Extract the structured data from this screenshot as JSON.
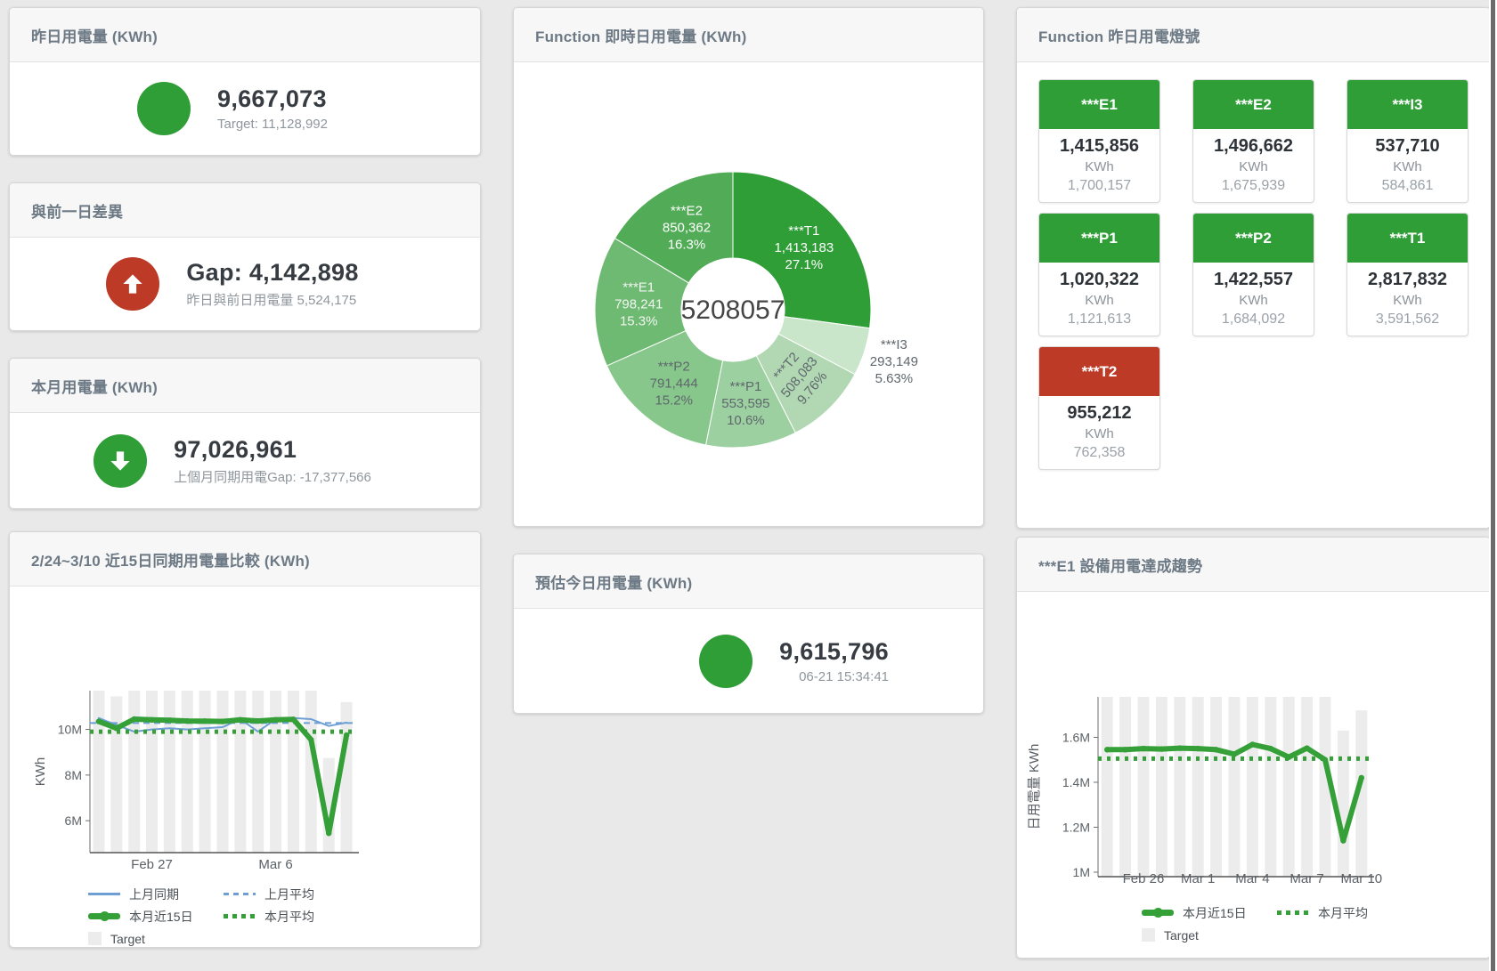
{
  "colors": {
    "status_green": "#2f9e37",
    "status_red": "#bd3a27",
    "green_line": "#34a037",
    "blue_line": "#6e9fd4",
    "bar_gray": "#ececec"
  },
  "cards": {
    "yesterday": {
      "title": "昨日用電量 (KWh)",
      "value": "9,667,073",
      "subtitle": "Target: 11,128,992",
      "icon": "green-circle",
      "icon_color_key": "status_green"
    },
    "gap": {
      "title": "與前一日差異",
      "value": "Gap: 4,142,898",
      "subtitle": "昨日與前日用電量 5,524,175",
      "icon": "arrow-up-circle",
      "icon_color_key": "status_red"
    },
    "month": {
      "title": "本月用電量 (KWh)",
      "value": "97,026,961",
      "subtitle": "上個月同期用電Gap: -17,377,566",
      "icon": "arrow-down-circle",
      "icon_color_key": "status_green"
    },
    "estimate": {
      "title": "預估今日用電量 (KWh)",
      "value": "9,615,796",
      "subtitle": "06-21 15:34:41",
      "icon": "green-circle",
      "icon_color_key": "status_green"
    },
    "lights": {
      "title": "Function 昨日用電燈號",
      "tiles": [
        {
          "name": "***E1",
          "value": "1,415,856",
          "unit": "KWh",
          "target": "1,700,157",
          "status": "status_green"
        },
        {
          "name": "***E2",
          "value": "1,496,662",
          "unit": "KWh",
          "target": "1,675,939",
          "status": "status_green"
        },
        {
          "name": "***I3",
          "value": "537,710",
          "unit": "KWh",
          "target": "584,861",
          "status": "status_green"
        },
        {
          "name": "***P1",
          "value": "1,020,322",
          "unit": "KWh",
          "target": "1,121,613",
          "status": "status_green"
        },
        {
          "name": "***P2",
          "value": "1,422,557",
          "unit": "KWh",
          "target": "1,684,092",
          "status": "status_green"
        },
        {
          "name": "***T1",
          "value": "2,817,832",
          "unit": "KWh",
          "target": "3,591,562",
          "status": "status_green"
        },
        {
          "name": "***T2",
          "value": "955,212",
          "unit": "KWh",
          "target": "762,358",
          "status": "status_red"
        }
      ]
    }
  },
  "chart_data": [
    {
      "id": "donut",
      "type": "pie",
      "title": "Function 即時日用電量 (KWh)",
      "center_total": "5208057",
      "slices": [
        {
          "name": "***T1",
          "value": 1413183,
          "label_value": "1,413,183",
          "pct": "27.1%",
          "color": "#2f9e37",
          "label_color": "#ffffff"
        },
        {
          "name": "***I3",
          "value": 293149,
          "label_value": "293,149",
          "pct": "5.63%",
          "color": "#c9e5ca",
          "label_color": "#5f676d",
          "outside": true
        },
        {
          "name": "***T2",
          "value": 508083,
          "label_value": "508,083",
          "pct": "9.76%",
          "color": "#b1d8b3",
          "label_color": "#5f676d",
          "rotate": -50
        },
        {
          "name": "***P1",
          "value": 553595,
          "label_value": "553,595",
          "pct": "10.6%",
          "color": "#9dd0a0",
          "label_color": "#5f676d"
        },
        {
          "name": "***P2",
          "value": 791444,
          "label_value": "791,444",
          "pct": "15.2%",
          "color": "#87c78b",
          "label_color": "#5f676d"
        },
        {
          "name": "***E1",
          "value": 798241,
          "label_value": "798,241",
          "pct": "15.3%",
          "color": "#6fba73",
          "label_color": "#f0f5f0"
        },
        {
          "name": "***E2",
          "value": 850362,
          "label_value": "850,362",
          "pct": "16.3%",
          "color": "#52ac57",
          "label_color": "#ffffff"
        }
      ]
    },
    {
      "id": "compare",
      "type": "line",
      "title": "2/24~3/10 近15日同期用電量比較 (KWh)",
      "ylabel": "KWh",
      "unit": "M KWh",
      "categories": [
        "2/24",
        "2/25",
        "2/26",
        "2/27",
        "2/28",
        "3/1",
        "3/2",
        "3/3",
        "3/4",
        "3/5",
        "3/6",
        "3/7",
        "3/8",
        "3/9",
        "3/10"
      ],
      "ylim": [
        4.6,
        11.7
      ],
      "y_ticks": [
        {
          "v": 6,
          "label": "6M"
        },
        {
          "v": 8,
          "label": "8M"
        },
        {
          "v": 10,
          "label": "10M"
        }
      ],
      "x_ticks": [
        {
          "i": 3,
          "label": "Feb 27"
        },
        {
          "i": 10,
          "label": "Mar 6"
        }
      ],
      "bars": {
        "name": "Target",
        "color": "#ececec",
        "values": [
          11.7,
          11.45,
          11.7,
          11.7,
          11.7,
          11.7,
          11.7,
          11.7,
          11.7,
          11.7,
          11.7,
          11.7,
          11.7,
          8.75,
          11.2
        ]
      },
      "series": [
        {
          "name": "上月同期",
          "color": "#6e9fd4",
          "style": "solid",
          "width": 2,
          "values": [
            10.5,
            10.2,
            9.9,
            10.0,
            10.05,
            10.0,
            10.05,
            10.1,
            10.45,
            9.9,
            10.45,
            10.5,
            10.45,
            10.15,
            10.3
          ]
        },
        {
          "name": "上月平均",
          "color": "#6e9fd4",
          "style": "dashed",
          "width": 2,
          "const": 10.28
        },
        {
          "name": "本月近15日",
          "color": "#34a037",
          "style": "solid",
          "width": 6,
          "dots": true,
          "values": [
            10.35,
            10.05,
            10.45,
            10.42,
            10.4,
            10.37,
            10.36,
            10.35,
            10.42,
            10.37,
            10.42,
            10.44,
            9.55,
            5.45,
            9.75
          ]
        },
        {
          "name": "本月平均",
          "color": "#34a037",
          "style": "dotted",
          "width": 5,
          "const": 9.9
        }
      ],
      "legend_rows": [
        [
          {
            "label": "上月同期",
            "marker": "solid",
            "color": "#6e9fd4"
          },
          {
            "label": "上月平均",
            "marker": "dashed",
            "color": "#6e9fd4"
          }
        ],
        [
          {
            "label": "本月近15日",
            "marker": "thick",
            "color": "#34a037"
          },
          {
            "label": "本月平均",
            "marker": "dotted",
            "color": "#34a037"
          }
        ],
        [
          {
            "label": "Target",
            "marker": "square",
            "color": "#ececec"
          }
        ]
      ]
    },
    {
      "id": "trend",
      "type": "line",
      "title": "***E1 設備用電達成趨勢",
      "ylabel": "日用電量 KWh",
      "unit": "M KWh",
      "categories": [
        "2/24",
        "2/25",
        "2/26",
        "2/27",
        "2/28",
        "3/1",
        "3/2",
        "3/3",
        "3/4",
        "3/5",
        "3/6",
        "3/7",
        "3/8",
        "3/9",
        "3/10"
      ],
      "ylim": [
        0.98,
        1.78
      ],
      "y_ticks": [
        {
          "v": 1,
          "label": "1M"
        },
        {
          "v": 1.2,
          "label": "1.2M"
        },
        {
          "v": 1.4,
          "label": "1.4M"
        },
        {
          "v": 1.6,
          "label": "1.6M"
        }
      ],
      "x_ticks": [
        {
          "i": 2,
          "label": "Feb 26"
        },
        {
          "i": 5,
          "label": "Mar 1"
        },
        {
          "i": 8,
          "label": "Mar 4"
        },
        {
          "i": 11,
          "label": "Mar 7"
        },
        {
          "i": 14,
          "label": "Mar 10"
        }
      ],
      "bars": {
        "name": "Target",
        "color": "#ececec",
        "values": [
          1.78,
          1.78,
          1.78,
          1.78,
          1.78,
          1.78,
          1.78,
          1.78,
          1.78,
          1.78,
          1.78,
          1.78,
          1.78,
          1.63,
          1.72
        ]
      },
      "series": [
        {
          "name": "本月近15日",
          "color": "#34a037",
          "style": "solid",
          "width": 6,
          "dots": true,
          "values": [
            1.545,
            1.545,
            1.55,
            1.548,
            1.552,
            1.55,
            1.545,
            1.525,
            1.568,
            1.55,
            1.512,
            1.552,
            1.5,
            1.14,
            1.42
          ]
        },
        {
          "name": "本月平均",
          "color": "#34a037",
          "style": "dotted",
          "width": 5,
          "const": 1.505
        }
      ],
      "legend_rows": [
        [
          {
            "label": "本月近15日",
            "marker": "thick",
            "color": "#34a037"
          },
          {
            "label": "本月平均",
            "marker": "dotted",
            "color": "#34a037"
          }
        ],
        [
          {
            "label": "Target",
            "marker": "square",
            "color": "#ececec"
          }
        ]
      ]
    }
  ]
}
